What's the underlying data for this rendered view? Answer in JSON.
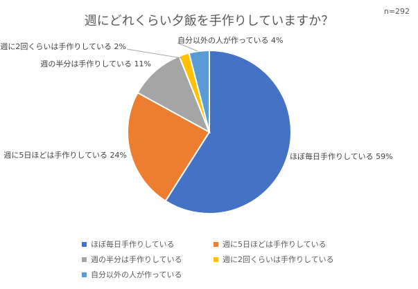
{
  "chart_data": {
    "type": "pie",
    "title": "週にどれくらい夕飯を手作りしていますか？",
    "sample_size": "n=292",
    "slices": [
      {
        "label": "ほぼ毎日手作りしている",
        "value": 59,
        "value_label": "59%",
        "color": "#4472C4"
      },
      {
        "label": "週に5日ほどは手作りしている",
        "value": 24,
        "value_label": "24%",
        "color": "#ED7D31"
      },
      {
        "label": "週の半分は手作りしている",
        "value": 11,
        "value_label": "11%",
        "color": "#A5A5A5"
      },
      {
        "label": "週に2回くらいは手作りしている",
        "value": 2,
        "value_label": "2%",
        "color": "#FFC000"
      },
      {
        "label": "自分以外の人が作っている",
        "value": 4,
        "value_label": "4%",
        "color": "#5B9BD5"
      }
    ],
    "legend_position": "bottom"
  }
}
